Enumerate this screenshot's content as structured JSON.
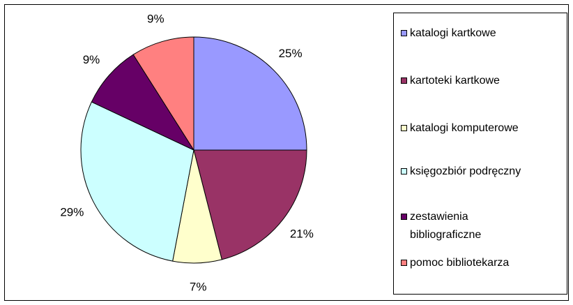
{
  "chart_data": {
    "type": "pie",
    "title": "",
    "legend_position": "right",
    "slices": [
      {
        "label": "katalogi kartkowe",
        "value": 25,
        "display": "25%",
        "color": "#9999ff"
      },
      {
        "label": "kartoteki kartkowe",
        "value": 21,
        "display": "21%",
        "color": "#993366"
      },
      {
        "label": "katalogi komputerowe",
        "value": 7,
        "display": "7%",
        "color": "#ffffcc"
      },
      {
        "label": "księgozbiór podręczny",
        "value": 29,
        "display": "29%",
        "color": "#ccffff"
      },
      {
        "label": "zestawienia bibliograficzne",
        "lines": [
          "zestawienia",
          "bibliograficzne"
        ],
        "value": 9,
        "display": "9%",
        "color": "#660066"
      },
      {
        "label": "pomoc bibliotekarza",
        "value": 9,
        "display": "9%",
        "color": "#ff8080"
      }
    ]
  }
}
